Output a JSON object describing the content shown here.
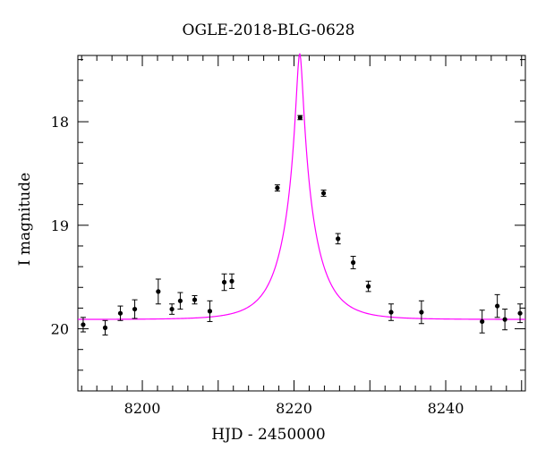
{
  "chart_data": {
    "type": "scatter",
    "title": "OGLE-2018-BLG-0628",
    "xlabel": "HJD - 2450000",
    "ylabel": "I magnitude",
    "xlim": [
      8191.5,
      8250.5
    ],
    "ylim": [
      20.6,
      17.36
    ],
    "y_inverted": true,
    "x_ticks": [
      8200,
      8220,
      8240
    ],
    "y_ticks": [
      18,
      19,
      20
    ],
    "grid": false,
    "series": [
      {
        "type": "scatter_with_errorbars",
        "color": "#000000",
        "points": [
          {
            "x": 8192.2,
            "y": 19.96,
            "err": 0.07
          },
          {
            "x": 8195.1,
            "y": 19.99,
            "err": 0.07
          },
          {
            "x": 8197.1,
            "y": 19.85,
            "err": 0.07
          },
          {
            "x": 8199.0,
            "y": 19.81,
            "err": 0.09
          },
          {
            "x": 8202.1,
            "y": 19.64,
            "err": 0.12
          },
          {
            "x": 8203.9,
            "y": 19.81,
            "err": 0.05
          },
          {
            "x": 8205.0,
            "y": 19.73,
            "err": 0.08
          },
          {
            "x": 8206.9,
            "y": 19.72,
            "err": 0.04
          },
          {
            "x": 8208.9,
            "y": 19.83,
            "err": 0.1
          },
          {
            "x": 8210.8,
            "y": 19.55,
            "err": 0.08
          },
          {
            "x": 8211.8,
            "y": 19.54,
            "err": 0.07
          },
          {
            "x": 8217.8,
            "y": 18.64,
            "err": 0.03
          },
          {
            "x": 8220.8,
            "y": 17.96,
            "err": 0.02
          },
          {
            "x": 8223.9,
            "y": 18.69,
            "err": 0.03
          },
          {
            "x": 8225.8,
            "y": 19.13,
            "err": 0.05
          },
          {
            "x": 8227.8,
            "y": 19.36,
            "err": 0.06
          },
          {
            "x": 8229.8,
            "y": 19.59,
            "err": 0.05
          },
          {
            "x": 8232.8,
            "y": 19.84,
            "err": 0.08
          },
          {
            "x": 8236.8,
            "y": 19.84,
            "err": 0.11
          },
          {
            "x": 8244.8,
            "y": 19.93,
            "err": 0.11
          },
          {
            "x": 8246.8,
            "y": 19.78,
            "err": 0.11
          },
          {
            "x": 8247.8,
            "y": 19.91,
            "err": 0.1
          },
          {
            "x": 8249.8,
            "y": 19.85,
            "err": 0.09
          }
        ]
      },
      {
        "type": "line",
        "color": "#ff00ff",
        "model": "point-lens microlensing fit",
        "t0": 8220.75,
        "peak_mag": 17.34,
        "baseline_mag": 19.91,
        "tE": 4.3
      }
    ]
  }
}
